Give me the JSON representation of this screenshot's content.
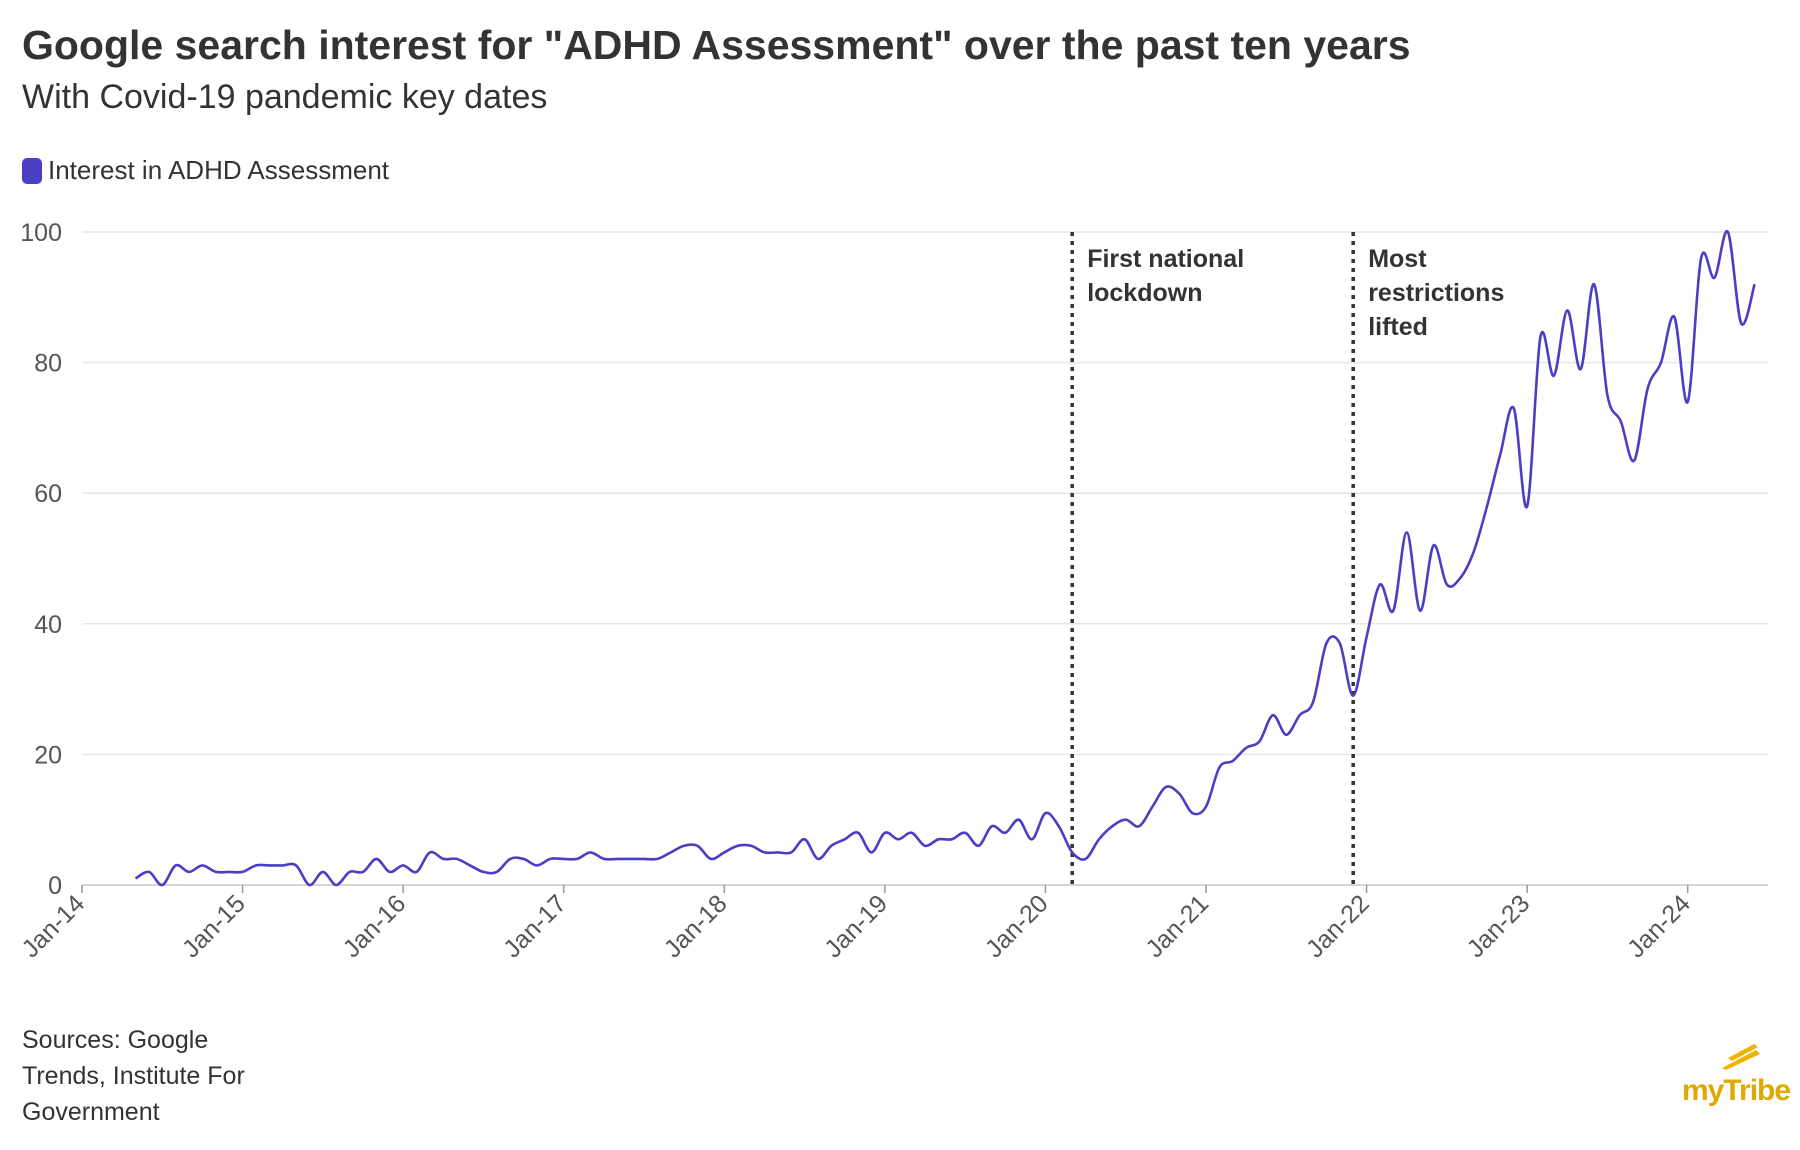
{
  "title": "Google search interest for \"ADHD Assessment\" over the past ten years",
  "subtitle": "With Covid-19 pandemic key dates",
  "legend": {
    "label": "Interest in ADHD Assessment",
    "color": "#4a3fc4"
  },
  "source": "Sources: Google Trends, Institute For Government",
  "brand": {
    "name": "myTribe",
    "color": "#f0b400",
    "icon": "mytribe-logo-icon"
  },
  "chart_data": {
    "type": "line",
    "title": "Google search interest for \"ADHD Assessment\" over the past ten years",
    "subtitle": "With Covid-19 pandemic key dates",
    "ylim": [
      0,
      100
    ],
    "xlim": [
      "2014-01",
      "2024-07"
    ],
    "yticks": [
      0,
      20,
      40,
      60,
      80,
      100
    ],
    "xticks": [
      "Jan-14",
      "Jan-15",
      "Jan-16",
      "Jan-17",
      "Jan-18",
      "Jan-19",
      "Jan-20",
      "Jan-21",
      "Jan-22",
      "Jan-23",
      "Jan-24"
    ],
    "grid": "horizontal",
    "legend_position": "top-left",
    "series": [
      {
        "name": "Interest in ADHD Assessment",
        "color": "#4a3fc4",
        "points": [
          [
            "2014-05",
            1
          ],
          [
            "2014-06",
            2
          ],
          [
            "2014-07",
            0
          ],
          [
            "2014-08",
            3
          ],
          [
            "2014-09",
            2
          ],
          [
            "2014-10",
            3
          ],
          [
            "2014-11",
            2
          ],
          [
            "2014-12",
            2
          ],
          [
            "2015-01",
            2
          ],
          [
            "2015-02",
            3
          ],
          [
            "2015-03",
            3
          ],
          [
            "2015-04",
            3
          ],
          [
            "2015-05",
            3
          ],
          [
            "2015-06",
            0
          ],
          [
            "2015-07",
            2
          ],
          [
            "2015-08",
            0
          ],
          [
            "2015-09",
            2
          ],
          [
            "2015-10",
            2
          ],
          [
            "2015-11",
            4
          ],
          [
            "2015-12",
            2
          ],
          [
            "2016-01",
            3
          ],
          [
            "2016-02",
            2
          ],
          [
            "2016-03",
            5
          ],
          [
            "2016-04",
            4
          ],
          [
            "2016-05",
            4
          ],
          [
            "2016-06",
            3
          ],
          [
            "2016-07",
            2
          ],
          [
            "2016-08",
            2
          ],
          [
            "2016-09",
            4
          ],
          [
            "2016-10",
            4
          ],
          [
            "2016-11",
            3
          ],
          [
            "2016-12",
            4
          ],
          [
            "2017-01",
            4
          ],
          [
            "2017-02",
            4
          ],
          [
            "2017-03",
            5
          ],
          [
            "2017-04",
            4
          ],
          [
            "2017-05",
            4
          ],
          [
            "2017-06",
            4
          ],
          [
            "2017-07",
            4
          ],
          [
            "2017-08",
            4
          ],
          [
            "2017-09",
            5
          ],
          [
            "2017-10",
            6
          ],
          [
            "2017-11",
            6
          ],
          [
            "2017-12",
            4
          ],
          [
            "2018-01",
            5
          ],
          [
            "2018-02",
            6
          ],
          [
            "2018-03",
            6
          ],
          [
            "2018-04",
            5
          ],
          [
            "2018-05",
            5
          ],
          [
            "2018-06",
            5
          ],
          [
            "2018-07",
            7
          ],
          [
            "2018-08",
            4
          ],
          [
            "2018-09",
            6
          ],
          [
            "2018-10",
            7
          ],
          [
            "2018-11",
            8
          ],
          [
            "2018-12",
            5
          ],
          [
            "2019-01",
            8
          ],
          [
            "2019-02",
            7
          ],
          [
            "2019-03",
            8
          ],
          [
            "2019-04",
            6
          ],
          [
            "2019-05",
            7
          ],
          [
            "2019-06",
            7
          ],
          [
            "2019-07",
            8
          ],
          [
            "2019-08",
            6
          ],
          [
            "2019-09",
            9
          ],
          [
            "2019-10",
            8
          ],
          [
            "2019-11",
            10
          ],
          [
            "2019-12",
            7
          ],
          [
            "2020-01",
            11
          ],
          [
            "2020-02",
            9
          ],
          [
            "2020-03",
            5
          ],
          [
            "2020-04",
            4
          ],
          [
            "2020-05",
            7
          ],
          [
            "2020-06",
            9
          ],
          [
            "2020-07",
            10
          ],
          [
            "2020-08",
            9
          ],
          [
            "2020-09",
            12
          ],
          [
            "2020-10",
            15
          ],
          [
            "2020-11",
            14
          ],
          [
            "2020-12",
            11
          ],
          [
            "2021-01",
            12
          ],
          [
            "2021-02",
            18
          ],
          [
            "2021-03",
            19
          ],
          [
            "2021-04",
            21
          ],
          [
            "2021-05",
            22
          ],
          [
            "2021-06",
            26
          ],
          [
            "2021-07",
            23
          ],
          [
            "2021-08",
            26
          ],
          [
            "2021-09",
            28
          ],
          [
            "2021-10",
            37
          ],
          [
            "2021-11",
            37
          ],
          [
            "2021-12",
            29
          ],
          [
            "2022-01",
            38
          ],
          [
            "2022-02",
            46
          ],
          [
            "2022-03",
            42
          ],
          [
            "2022-04",
            54
          ],
          [
            "2022-05",
            42
          ],
          [
            "2022-06",
            52
          ],
          [
            "2022-07",
            46
          ],
          [
            "2022-08",
            47
          ],
          [
            "2022-09",
            51
          ],
          [
            "2022-10",
            58
          ],
          [
            "2022-11",
            66
          ],
          [
            "2022-12",
            73
          ],
          [
            "2023-01",
            58
          ],
          [
            "2023-02",
            84
          ],
          [
            "2023-03",
            78
          ],
          [
            "2023-04",
            88
          ],
          [
            "2023-05",
            79
          ],
          [
            "2023-06",
            92
          ],
          [
            "2023-07",
            75
          ],
          [
            "2023-08",
            71
          ],
          [
            "2023-09",
            65
          ],
          [
            "2023-10",
            76
          ],
          [
            "2023-11",
            80
          ],
          [
            "2023-12",
            87
          ],
          [
            "2024-01",
            74
          ],
          [
            "2024-02",
            96
          ],
          [
            "2024-03",
            93
          ],
          [
            "2024-04",
            100
          ],
          [
            "2024-05",
            86
          ],
          [
            "2024-06",
            92
          ]
        ]
      }
    ],
    "annotations": [
      {
        "x": "2020-03",
        "label": "First national lockdown",
        "lines": [
          "First national",
          "lockdown"
        ],
        "style": "dotted"
      },
      {
        "x": "2021-12",
        "label": "Most restrictions lifted",
        "lines": [
          "Most",
          "restrictions",
          "lifted"
        ],
        "style": "dotted"
      }
    ]
  }
}
